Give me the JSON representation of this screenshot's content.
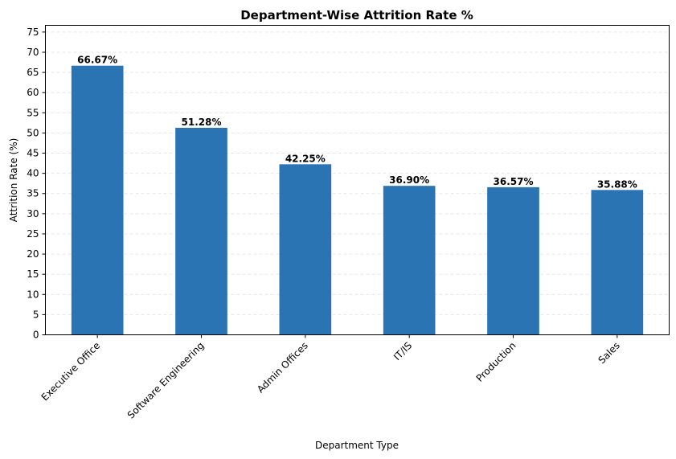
{
  "chart_data": {
    "type": "bar",
    "title": "Department-Wise Attrition Rate %",
    "xlabel": "Department Type",
    "ylabel": "Attrition Rate (%)",
    "categories": [
      "Executive Office",
      "Software Engineering",
      "Admin Offices",
      "IT/IS",
      "Production",
      "Sales"
    ],
    "values": [
      66.67,
      51.28,
      42.25,
      36.9,
      36.57,
      35.88
    ],
    "value_labels": [
      "66.67%",
      "51.28%",
      "42.25%",
      "36.90%",
      "36.57%",
      "35.88%"
    ],
    "ylim": [
      0,
      76.67
    ],
    "yticks": [
      0,
      5,
      10,
      15,
      20,
      25,
      30,
      35,
      40,
      45,
      50,
      55,
      60,
      65,
      70,
      75
    ],
    "grid": "y-dashed",
    "legend": "none",
    "bar_color": "#2a74b4",
    "grid_color": "#e6e6e6"
  }
}
